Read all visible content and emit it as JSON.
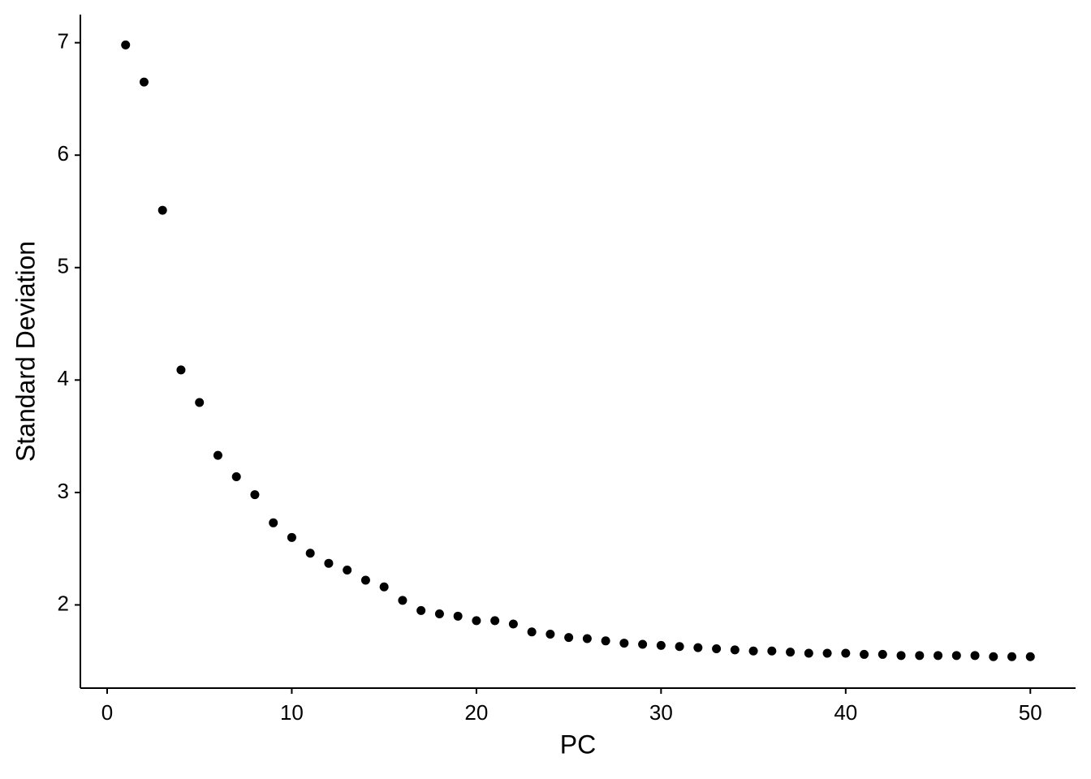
{
  "chart_data": {
    "type": "scatter",
    "x_label": "PC",
    "y_label": "Standard Deviation",
    "x": [
      1,
      2,
      3,
      4,
      5,
      6,
      7,
      8,
      9,
      10,
      11,
      12,
      13,
      14,
      15,
      16,
      17,
      18,
      19,
      20,
      21,
      22,
      23,
      24,
      25,
      26,
      27,
      28,
      29,
      30,
      31,
      32,
      33,
      34,
      35,
      36,
      37,
      38,
      39,
      40,
      41,
      42,
      43,
      44,
      45,
      46,
      47,
      48,
      49,
      50
    ],
    "values": [
      6.98,
      6.65,
      5.51,
      4.09,
      3.8,
      3.33,
      3.14,
      2.98,
      2.73,
      2.6,
      2.46,
      2.37,
      2.31,
      2.22,
      2.16,
      2.04,
      1.95,
      1.92,
      1.9,
      1.86,
      1.86,
      1.83,
      1.76,
      1.74,
      1.71,
      1.7,
      1.68,
      1.66,
      1.65,
      1.64,
      1.63,
      1.62,
      1.61,
      1.6,
      1.59,
      1.59,
      1.58,
      1.57,
      1.57,
      1.57,
      1.56,
      1.56,
      1.55,
      1.55,
      1.55,
      1.55,
      1.55,
      1.54,
      1.54,
      1.54
    ],
    "color": "#000000",
    "xlim": [
      -1.45,
      52.45
    ],
    "xticks": [
      0,
      10,
      20,
      30,
      40,
      50
    ],
    "ylim": [
      1.26,
      7.25
    ],
    "yticks": [
      2,
      3,
      4,
      5,
      6,
      7
    ],
    "grid": false
  }
}
